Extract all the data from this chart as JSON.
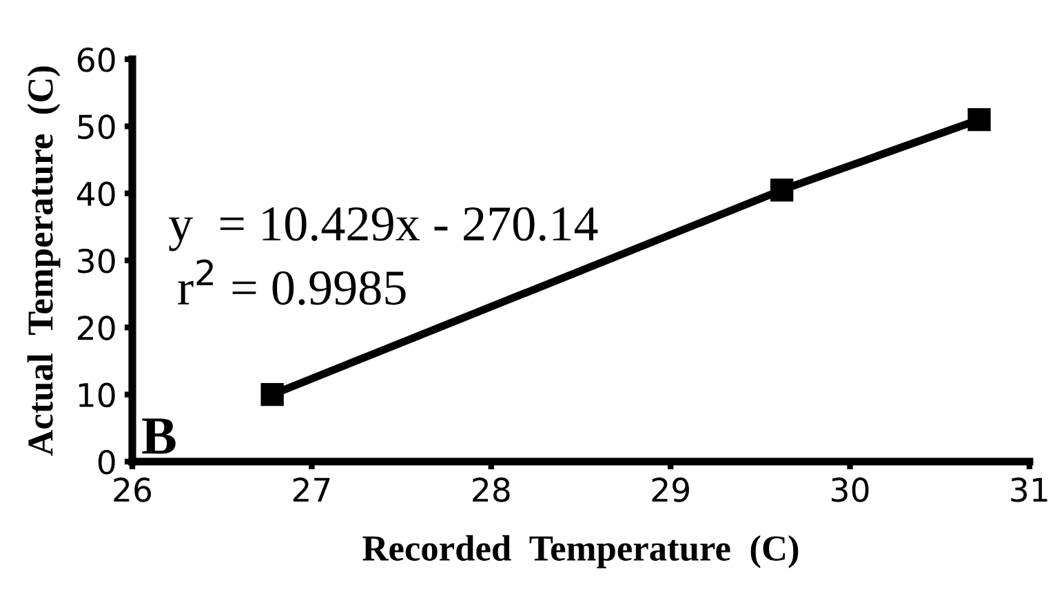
{
  "chart_data": {
    "type": "line",
    "xlabel": "Recorded  Temperature  (C)",
    "ylabel": "Actual  Temperature  (C)",
    "x": [
      26.78,
      29.62,
      30.72
    ],
    "series": [
      {
        "color": "#000000",
        "values": [
          10,
          40.5,
          51
        ]
      }
    ],
    "marker": "square",
    "line_style": "solid",
    "xlim": [
      26,
      31
    ],
    "xticks": [
      26,
      27,
      28,
      29,
      30,
      31
    ],
    "ylim": [
      0,
      60
    ],
    "yticks": [
      0,
      10,
      20,
      30,
      40,
      50,
      60
    ],
    "grid": false,
    "legend": false,
    "annotations": [
      "y  = 10.429x - 270.14",
      "r$^{2}$ = 0.9985",
      "B"
    ]
  }
}
